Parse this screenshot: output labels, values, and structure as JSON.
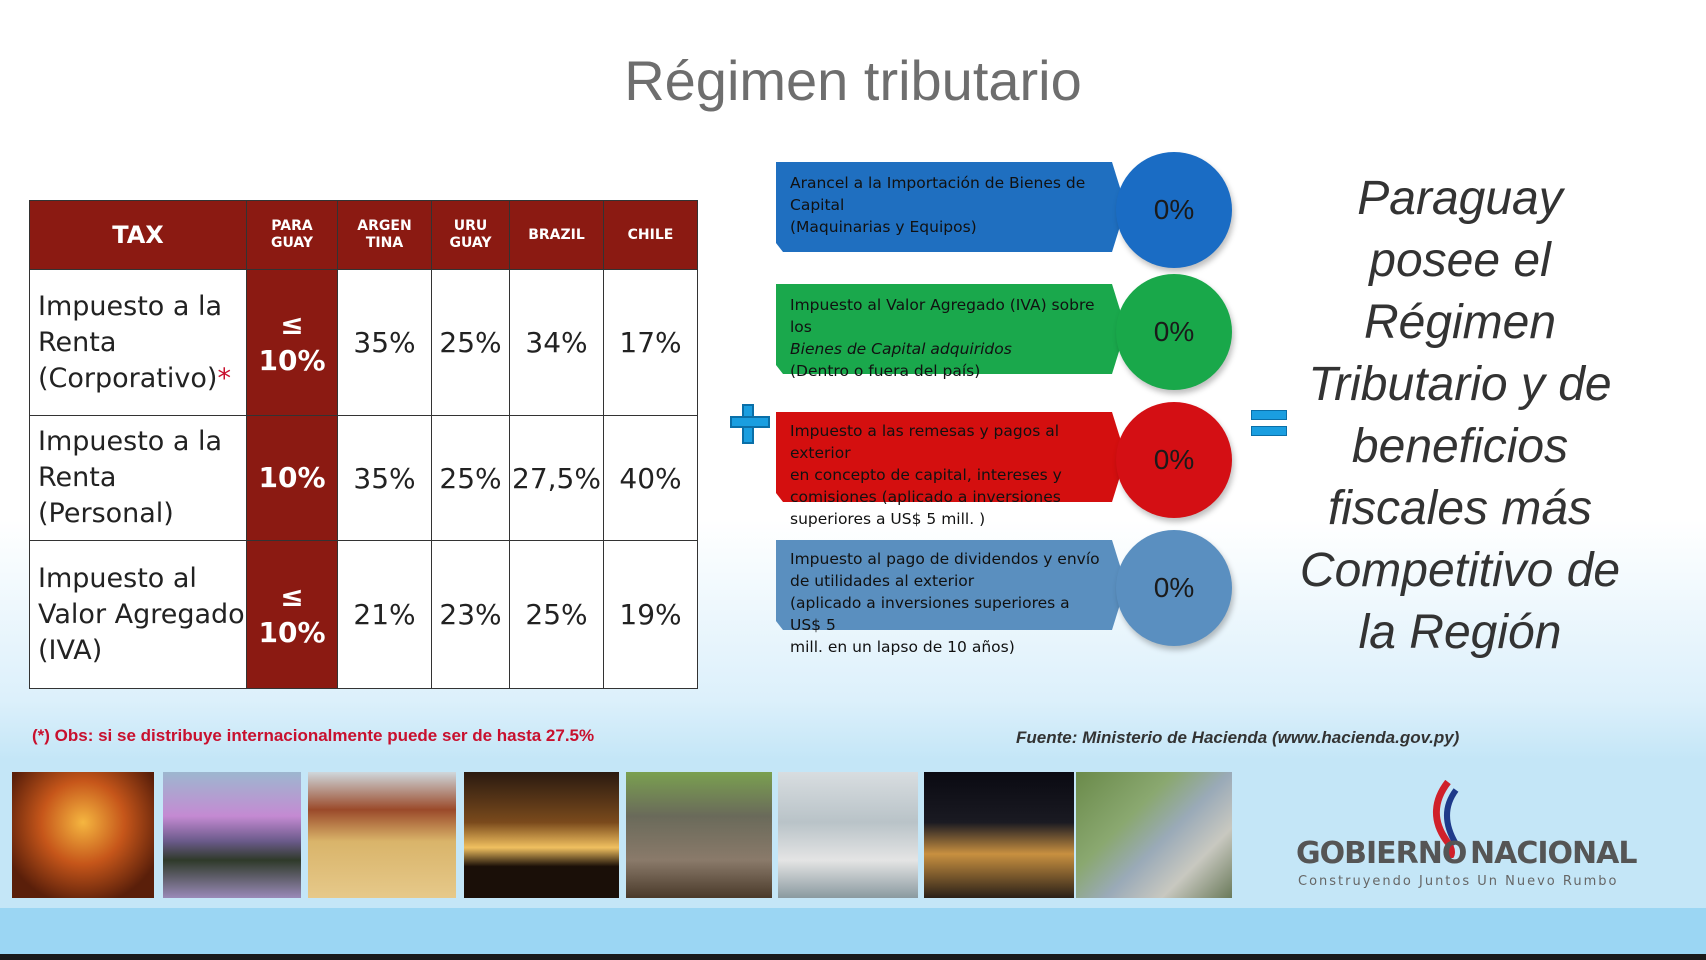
{
  "title": "Régimen tributario",
  "table": {
    "headers": {
      "tax": "TAX",
      "paraguay": [
        "PARA",
        "GUAY"
      ],
      "argentina": [
        "ARGEN",
        "TINA"
      ],
      "uruguay": [
        "URU",
        "GUAY"
      ],
      "brazil": "BRAZIL",
      "chile": "CHILE"
    },
    "rows": [
      {
        "label": [
          "Impuesto a la",
          "Renta",
          "(Corporativo)"
        ],
        "star": "*",
        "paraguay": [
          "≤",
          "10%"
        ],
        "argentina": "35%",
        "uruguay": "25%",
        "brazil": "34%",
        "chile": "17%"
      },
      {
        "label": [
          "Impuesto a la",
          "Renta",
          "(Personal)"
        ],
        "paraguay": [
          "10%"
        ],
        "argentina": "35%",
        "uruguay": "25%",
        "brazil": "27,5%",
        "chile": "40%"
      },
      {
        "label": [
          "Impuesto al",
          "Valor Agregado",
          "(IVA)"
        ],
        "paraguay": [
          "≤",
          "10%"
        ],
        "argentina": "21%",
        "uruguay": "23%",
        "brazil": "25%",
        "chile": "19%"
      }
    ]
  },
  "benefits": [
    {
      "lines": [
        "Arancel a la Importación de Bienes de",
        "Capital",
        "(Maquinarias y Equipos)"
      ],
      "rate": "0%",
      "bar_color": "#1f6fc0",
      "circle_color": "#1a6cc4"
    },
    {
      "lines": [
        "Impuesto al Valor Agregado (IVA) sobre los",
        "Bienes de Capital adquiridos",
        "(Dentro o fuera del país)"
      ],
      "rate": "0%",
      "bar_color": "#1aa84c",
      "circle_color": "#19a84a"
    },
    {
      "lines": [
        "Impuesto a las remesas y pagos al exterior",
        "en concepto de capital, intereses y",
        "comisiones (aplicado a inversiones",
        "superiores a US$ 5 mill. )"
      ],
      "rate": "0%",
      "bar_color": "#d40f0f",
      "circle_color": "#d40f14"
    },
    {
      "lines": [
        "Impuesto al pago de dividendos y envío",
        "de utilidades al exterior",
        "(aplicado a inversiones superiores a US$ 5",
        "mill. en un lapso de 10 años)"
      ],
      "rate": "0%",
      "bar_color": "#5a8fbf",
      "circle_color": "#5a8fc0"
    }
  ],
  "claim": "Paraguay posee el Régimen Tributario y de beneficios fiscales más Competitivo de la Región",
  "note": "(*) Obs: si se distribuye internacionalmente puede ser de hasta 27.5%",
  "source": "Fuente: Ministerio de Hacienda (www.hacienda.gov.py)",
  "logo": {
    "word1": "GOBIERNO",
    "word2": "NACIONAL",
    "tagline": "Construyendo Juntos Un Nuevo Rumbo"
  },
  "colors": {
    "table_header": "#8b1a12",
    "accent_blue": "#1a9ee0",
    "note_red": "#c8102e"
  },
  "photo_icons": [
    "palace-photo",
    "lapacho-tree-photo",
    "soybean-harvest-photo",
    "sunset-palms-photo",
    "cattle-herd-photo",
    "factory-workers-photo",
    "night-city-photo",
    "river-barge-photo"
  ]
}
